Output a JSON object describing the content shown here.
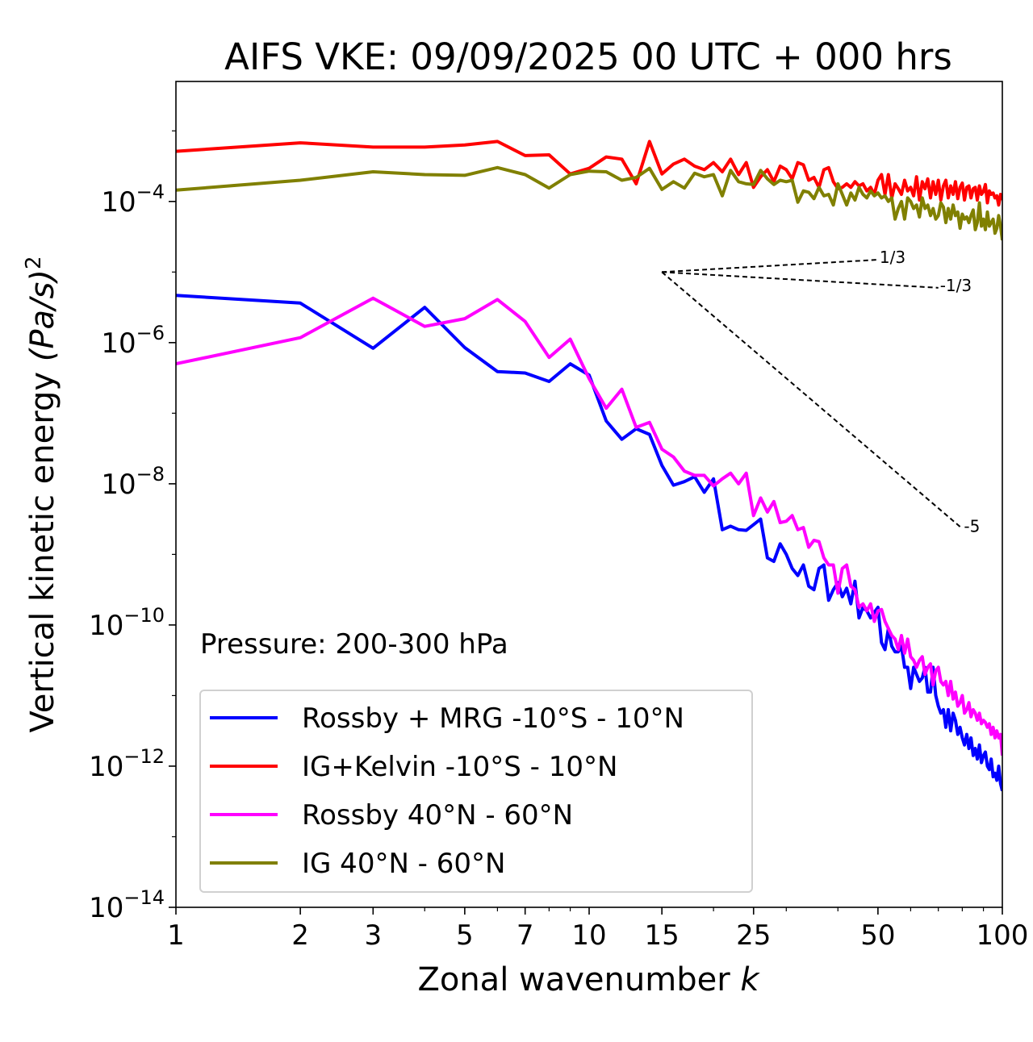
{
  "chart_data": {
    "type": "line",
    "title": "AIFS VKE: 09/09/2025 00 UTC + 000 hrs",
    "xlabel": "Zonal wavenumber ",
    "xlabel_italic": "k",
    "ylabel": "Vertical kinetic energy ",
    "ylabel_math": "(Pa/s)",
    "ylabel_exp": "2",
    "xscale": "log",
    "yscale": "log",
    "xlim": [
      1,
      100
    ],
    "ylim_log10": [
      -14,
      -2.3
    ],
    "x_ticks": [
      1,
      2,
      3,
      5,
      7,
      10,
      15,
      25,
      50,
      100
    ],
    "x_tick_labels": [
      "1",
      "2",
      "3",
      "5",
      "7",
      "10",
      "15",
      "25",
      "50",
      "100"
    ],
    "y_ticks_log10": [
      -4,
      -6,
      -8,
      -10,
      -12,
      -14
    ],
    "y_tick_labels": [
      {
        "base": "10",
        "exp": "−4"
      },
      {
        "base": "10",
        "exp": "−6"
      },
      {
        "base": "10",
        "exp": "−8"
      },
      {
        "base": "10",
        "exp": "−10"
      },
      {
        "base": "10",
        "exp": "−12"
      },
      {
        "base": "10",
        "exp": "−14"
      }
    ],
    "annotation": "Pressure: 200-300 hPa",
    "legend_position": "lower-left",
    "reference_slopes": [
      {
        "label": "1/3",
        "slope": 0.3333,
        "k0": 15,
        "k1": 50,
        "y0_log10": -5
      },
      {
        "label": "-1/3",
        "slope": -0.3333,
        "k0": 15,
        "k1": 70,
        "y0_log10": -5
      },
      {
        "label": "-5",
        "slope": -5,
        "k0": 15,
        "k1": 80,
        "y0_log10": -5
      }
    ],
    "x": "k = 1..100",
    "series": [
      {
        "name": "Rossby + MRG -10°S - 10°N",
        "color": "#0000ff",
        "y_log10": [
          -5.33,
          -5.44,
          -6.08,
          -5.5,
          -6.07,
          -6.41,
          -6.43,
          -6.55,
          -6.3,
          -6.46,
          -7.11,
          -7.37,
          -7.22,
          -7.3,
          -7.74,
          -8.02,
          -7.97,
          -7.9,
          -8.12,
          -7.93,
          -8.65,
          -8.6,
          -8.65,
          -8.66,
          -8.58,
          -8.5,
          -9.05,
          -9.1,
          -8.85,
          -9.0,
          -9.2,
          -9.3,
          -9.15,
          -9.45,
          -9.5,
          -9.2,
          -9.15,
          -9.65,
          -9.5,
          -9.4,
          -9.6,
          -9.48,
          -9.7,
          -9.38,
          -9.9,
          -9.75,
          -9.8,
          -9.9,
          -9.82,
          -9.75,
          -10.25,
          -10.35,
          -10.05,
          -10.3,
          -10.38,
          -10.38,
          -10.3,
          -10.6,
          -10.6,
          -10.9,
          -10.6,
          -10.7,
          -10.8,
          -10.75,
          -10.6,
          -10.95,
          -10.95,
          -10.6,
          -11.0,
          -11.15,
          -11.25,
          -11.2,
          -11.45,
          -11.2,
          -11.5,
          -11.25,
          -11.35,
          -11.55,
          -11.45,
          -11.6,
          -11.7,
          -11.55,
          -11.75,
          -11.6,
          -11.85,
          -11.75,
          -11.9,
          -11.7,
          -11.95,
          -11.85,
          -11.8,
          -12.0,
          -12.05,
          -11.9,
          -12.15,
          -12.1,
          -12.2,
          -12.0,
          -12.25,
          -12.35
        ]
      },
      {
        "name": "IG+Kelvin -10°S - 10°N",
        "color": "#ff0000",
        "y_log10": [
          -3.29,
          -3.17,
          -3.23,
          -3.23,
          -3.2,
          -3.15,
          -3.35,
          -3.34,
          -3.61,
          -3.53,
          -3.37,
          -3.4,
          -3.75,
          -3.15,
          -3.61,
          -3.47,
          -3.4,
          -3.5,
          -3.55,
          -3.45,
          -3.58,
          -3.4,
          -3.62,
          -3.45,
          -3.8,
          -3.65,
          -3.55,
          -3.72,
          -3.5,
          -3.55,
          -3.68,
          -3.45,
          -3.48,
          -3.7,
          -3.66,
          -3.8,
          -3.55,
          -3.52,
          -3.72,
          -3.82,
          -3.8,
          -3.75,
          -3.8,
          -3.72,
          -3.78,
          -3.75,
          -3.85,
          -3.8,
          -3.9,
          -3.7,
          -3.62,
          -3.9,
          -3.62,
          -3.95,
          -3.75,
          -3.82,
          -3.9,
          -3.7,
          -3.85,
          -3.8,
          -3.92,
          -3.65,
          -3.98,
          -3.72,
          -3.82,
          -3.68,
          -3.95,
          -3.72,
          -3.9,
          -3.7,
          -3.98,
          -3.78,
          -3.7,
          -3.95,
          -3.78,
          -3.9,
          -3.72,
          -3.96,
          -3.8,
          -3.74,
          -3.98,
          -3.8,
          -3.78,
          -3.95,
          -3.82,
          -3.8,
          -3.98,
          -3.78,
          -3.9,
          -3.86,
          -3.76,
          -4.02,
          -3.85,
          -3.9,
          -3.88,
          -3.95,
          -3.92,
          -4.05,
          -3.9,
          -3.98
        ]
      },
      {
        "name": "Rossby 40°N - 60°N",
        "color": "#ff00ff",
        "y_log10": [
          -6.3,
          -5.93,
          -5.37,
          -5.77,
          -5.66,
          -5.39,
          -5.7,
          -6.21,
          -5.95,
          -6.51,
          -6.93,
          -6.66,
          -7.2,
          -7.13,
          -7.51,
          -7.62,
          -7.82,
          -7.88,
          -7.88,
          -8.03,
          -7.93,
          -7.85,
          -8.0,
          -7.85,
          -8.45,
          -8.2,
          -8.4,
          -8.25,
          -8.55,
          -8.53,
          -8.45,
          -8.65,
          -8.62,
          -8.9,
          -8.8,
          -8.82,
          -9.05,
          -9.15,
          -9.15,
          -9.55,
          -9.2,
          -9.15,
          -9.45,
          -9.5,
          -9.75,
          -9.7,
          -9.8,
          -9.7,
          -9.95,
          -9.8,
          -9.78,
          -9.95,
          -10.05,
          -10.15,
          -10.2,
          -10.35,
          -10.15,
          -10.4,
          -10.2,
          -10.45,
          -10.5,
          -10.6,
          -10.5,
          -10.45,
          -10.7,
          -10.6,
          -10.55,
          -10.85,
          -10.65,
          -10.6,
          -10.8,
          -10.85,
          -10.8,
          -11.0,
          -10.8,
          -11.05,
          -10.95,
          -11.15,
          -11.1,
          -11.0,
          -11.25,
          -11.2,
          -11.1,
          -11.3,
          -11.2,
          -11.25,
          -11.35,
          -11.25,
          -11.4,
          -11.35,
          -11.38,
          -11.45,
          -11.4,
          -11.55,
          -11.45,
          -11.6,
          -11.5,
          -11.6,
          -11.55,
          -11.85
        ]
      },
      {
        "name": "IG 40°N - 60°N",
        "color": "#808000",
        "y_log10": [
          -3.84,
          -3.7,
          -3.58,
          -3.62,
          -3.63,
          -3.52,
          -3.62,
          -3.81,
          -3.62,
          -3.57,
          -3.58,
          -3.7,
          -3.66,
          -3.53,
          -3.83,
          -3.72,
          -3.81,
          -3.6,
          -3.65,
          -3.62,
          -3.92,
          -3.56,
          -3.72,
          -3.75,
          -3.76,
          -3.56,
          -3.68,
          -3.76,
          -3.7,
          -3.72,
          -3.7,
          -4.01,
          -3.85,
          -3.87,
          -3.96,
          -3.8,
          -3.92,
          -3.9,
          -4.05,
          -3.75,
          -3.9,
          -4.05,
          -3.88,
          -3.98,
          -3.8,
          -3.9,
          -3.95,
          -3.85,
          -3.92,
          -3.88,
          -3.95,
          -3.92,
          -4.0,
          -3.95,
          -4.25,
          -4.1,
          -4.0,
          -4.25,
          -3.95,
          -4.0,
          -4.1,
          -4.05,
          -4.22,
          -3.95,
          -4.1,
          -4.05,
          -4.2,
          -4.1,
          -4.25,
          -4.2,
          -4.02,
          -4.08,
          -4.3,
          -4.1,
          -4.25,
          -4.05,
          -4.2,
          -4.15,
          -4.38,
          -4.18,
          -4.25,
          -4.22,
          -4.3,
          -4.2,
          -4.12,
          -4.4,
          -4.3,
          -4.02,
          -4.35,
          -4.25,
          -4.4,
          -4.15,
          -4.35,
          -4.3,
          -4.25,
          -4.45,
          -4.38,
          -4.2,
          -4.35,
          -4.55
        ]
      }
    ]
  }
}
